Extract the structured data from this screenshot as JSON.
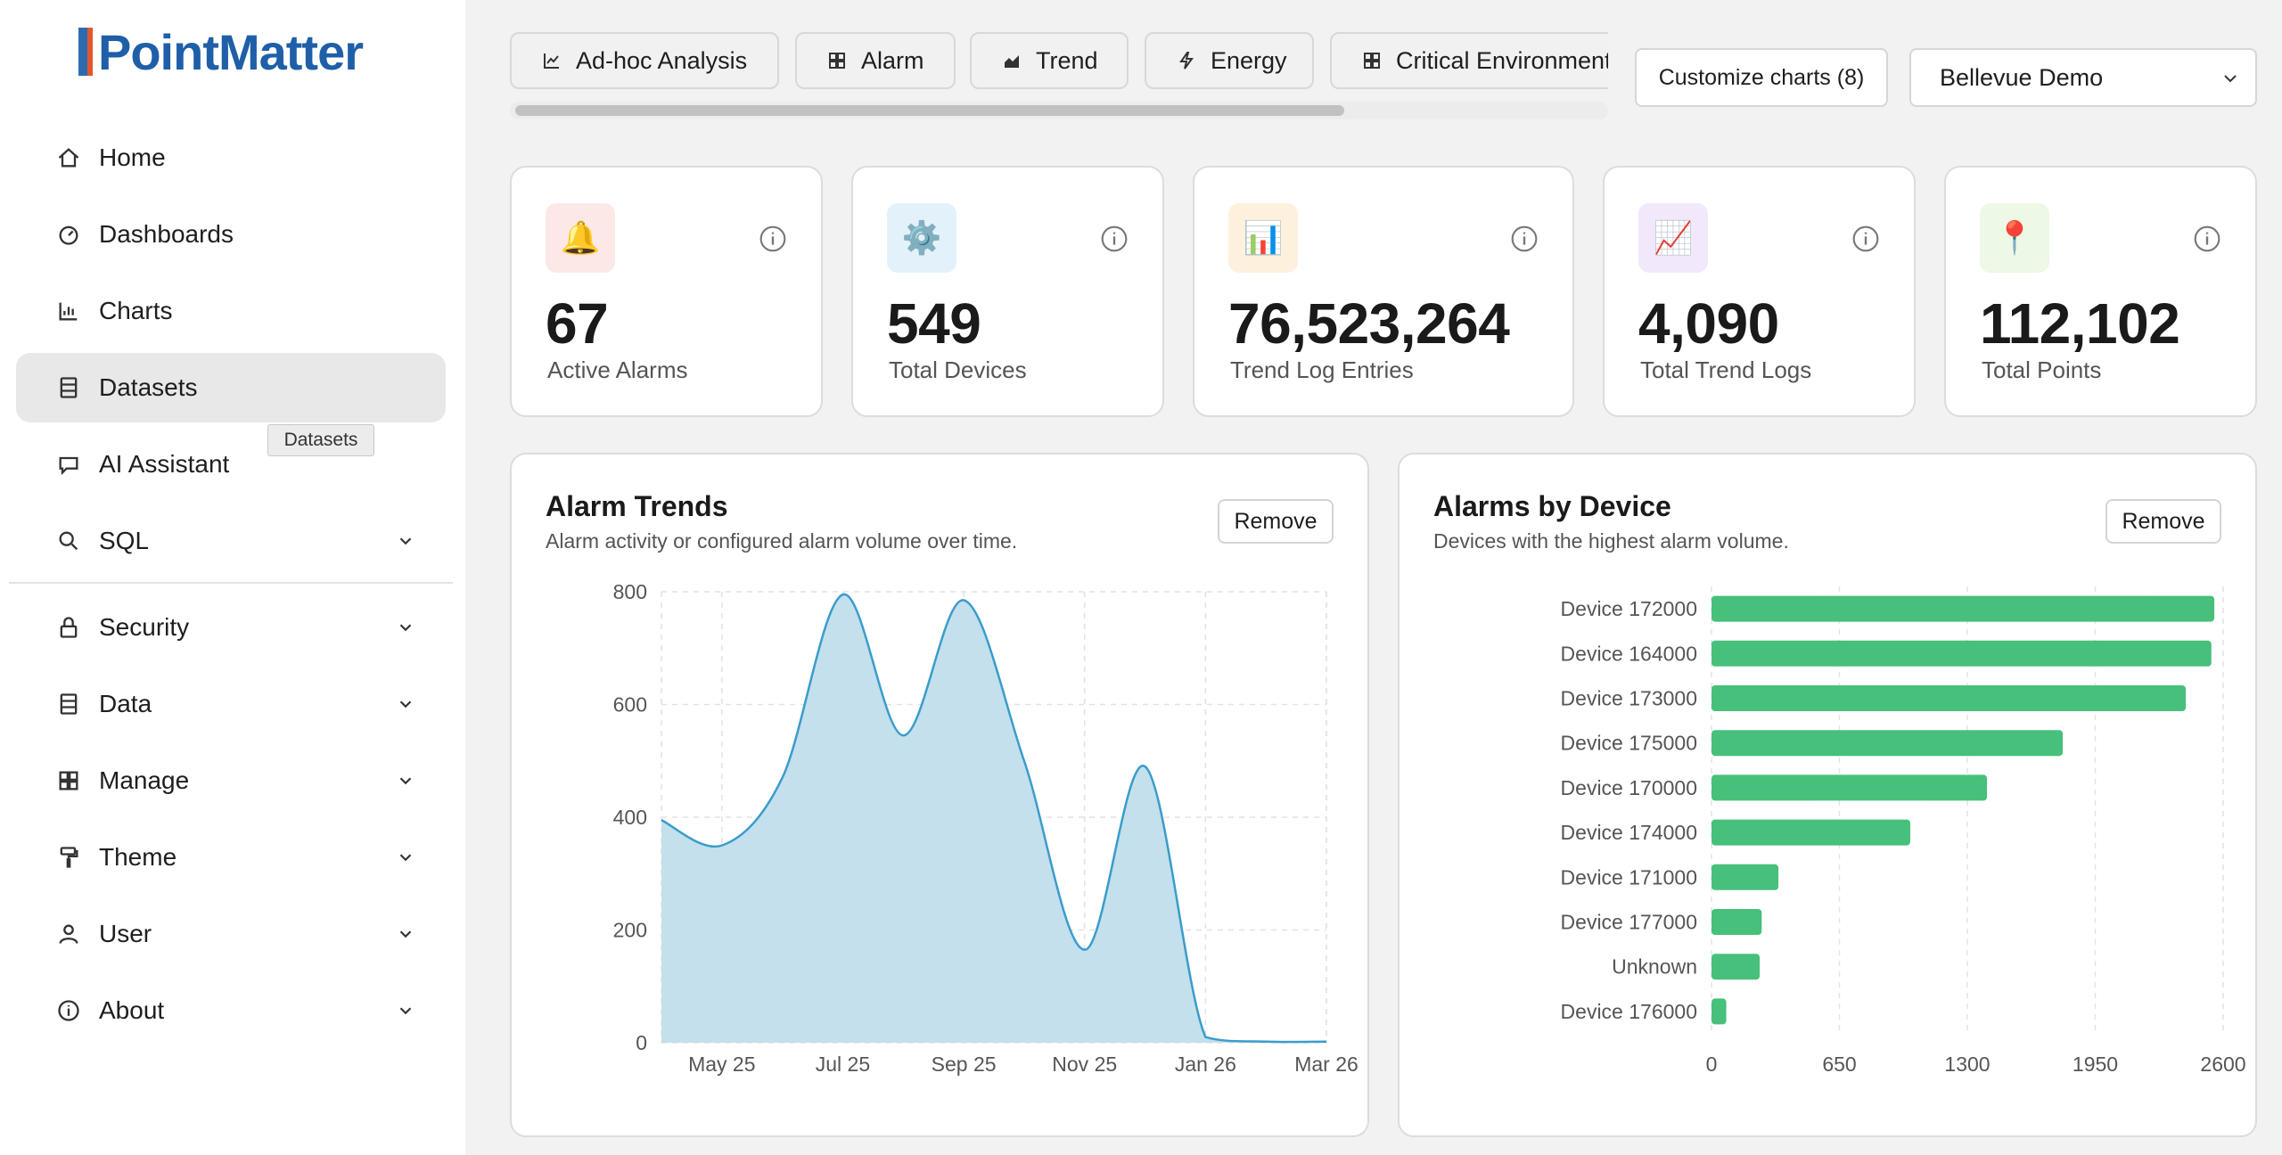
{
  "app": {
    "logo_text": "PointMatter"
  },
  "sidebar": {
    "items": [
      {
        "label": "Home",
        "icon": "home-icon",
        "expandable": false
      },
      {
        "label": "Dashboards",
        "icon": "gauge-icon",
        "expandable": false
      },
      {
        "label": "Charts",
        "icon": "bar-chart-icon",
        "expandable": false
      },
      {
        "label": "Datasets",
        "icon": "dataset-icon",
        "expandable": false,
        "active": true
      },
      {
        "label": "AI Assistant",
        "icon": "chat-icon",
        "expandable": false
      },
      {
        "label": "SQL",
        "icon": "search-icon",
        "expandable": true
      },
      {
        "label": "Security",
        "icon": "lock-icon",
        "expandable": true
      },
      {
        "label": "Data",
        "icon": "database-icon",
        "expandable": true
      },
      {
        "label": "Manage",
        "icon": "grid-icon",
        "expandable": true
      },
      {
        "label": "Theme",
        "icon": "paint-roller-icon",
        "expandable": true
      },
      {
        "label": "User",
        "icon": "user-icon",
        "expandable": true
      },
      {
        "label": "About",
        "icon": "info-icon",
        "expandable": true
      }
    ],
    "tooltip": "Datasets"
  },
  "tabs": [
    {
      "label": "Ad-hoc Analysis",
      "icon": "line-chart-icon"
    },
    {
      "label": "Alarm",
      "icon": "grid-icon"
    },
    {
      "label": "Trend",
      "icon": "area-chart-icon"
    },
    {
      "label": "Energy",
      "icon": "bolt-icon"
    },
    {
      "label": "Critical Environment",
      "icon": "grid-icon"
    }
  ],
  "toolbar": {
    "customize_label": "Customize charts (8)",
    "site_selected": "Bellevue Demo"
  },
  "stats": [
    {
      "value": "67",
      "label": "Active Alarms",
      "icon": "bell-icon",
      "emoji": "🔔",
      "tint": "#fde8e8"
    },
    {
      "value": "549",
      "label": "Total Devices",
      "icon": "gear-icon",
      "emoji": "⚙️",
      "tint": "#e3f1fb"
    },
    {
      "value": "76,523,264",
      "label": "Trend Log Entries",
      "icon": "bar-chart-icon",
      "emoji": "📊",
      "tint": "#fdf1de"
    },
    {
      "value": "4,090",
      "label": "Total Trend Logs",
      "icon": "trend-up-icon",
      "emoji": "📈",
      "tint": "#f1e8fb"
    },
    {
      "value": "112,102",
      "label": "Total Points",
      "icon": "pin-icon",
      "emoji": "📍",
      "tint": "#edf8e6"
    }
  ],
  "panels": {
    "alarm_trends": {
      "title": "Alarm Trends",
      "subtitle": "Alarm activity or configured alarm volume over time.",
      "remove_label": "Remove"
    },
    "alarms_by_device": {
      "title": "Alarms by Device",
      "subtitle": "Devices with the highest alarm volume.",
      "remove_label": "Remove"
    }
  },
  "chart_data": [
    {
      "type": "area",
      "title": "Alarm Trends",
      "x_ticks": [
        "May 25",
        "Jul 25",
        "Sep 25",
        "Nov 25",
        "Jan 26",
        "Mar 26"
      ],
      "y_ticks": [
        0,
        200,
        400,
        600,
        800
      ],
      "ylim": [
        0,
        800
      ],
      "grid": true,
      "color": "#3a9ccc",
      "fill": "#c3e0ec",
      "points": [
        {
          "x": "Apr 25",
          "y": 395
        },
        {
          "x": "May 25",
          "y": 350
        },
        {
          "x": "Jun 25",
          "y": 470
        },
        {
          "x": "Jul 25",
          "y": 795
        },
        {
          "x": "Aug 25",
          "y": 545
        },
        {
          "x": "Sep 25",
          "y": 785
        },
        {
          "x": "Oct 25",
          "y": 500
        },
        {
          "x": "Nov 25",
          "y": 165
        },
        {
          "x": "Dec 25",
          "y": 490
        },
        {
          "x": "Jan 26",
          "y": 10
        },
        {
          "x": "Feb 26",
          "y": 2
        },
        {
          "x": "Mar 26",
          "y": 2
        }
      ]
    },
    {
      "type": "bar",
      "orientation": "horizontal",
      "title": "Alarms by Device",
      "categories": [
        "Device 172000",
        "Device 164000",
        "Device 173000",
        "Device 175000",
        "Device 170000",
        "Device 174000",
        "Device 171000",
        "Device 177000",
        "Unknown",
        "Device 176000"
      ],
      "values": [
        2555,
        2540,
        2410,
        1785,
        1400,
        1010,
        340,
        255,
        245,
        75
      ],
      "x_ticks": [
        0,
        650,
        1300,
        1950,
        2600
      ],
      "xlim": [
        0,
        2600
      ],
      "grid": true,
      "color": "#46c07a"
    }
  ]
}
